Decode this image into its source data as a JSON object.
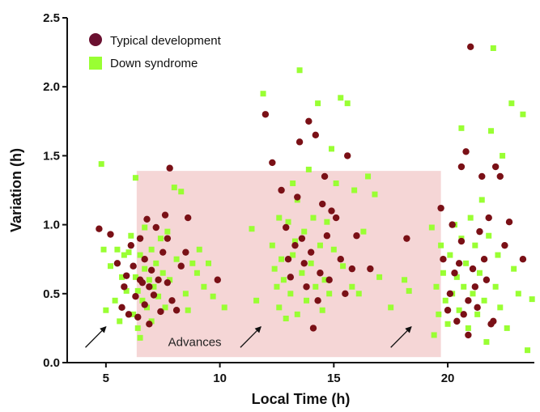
{
  "chart_data": {
    "type": "scatter",
    "title": "",
    "xlabel": "Local Time (h)",
    "ylabel": "Variation (h)",
    "xlim": [
      3.3,
      23.8
    ],
    "ylim": [
      0.0,
      2.5
    ],
    "xticks": [
      5,
      10,
      15,
      20
    ],
    "yticks": [
      0.0,
      0.5,
      1.0,
      1.5,
      2.0,
      2.5
    ],
    "ytick_labels": [
      "0.0",
      "0.5",
      "1.0",
      "1.5",
      "2.0",
      "2.5"
    ],
    "grid": false,
    "legend_position": "top-left",
    "shaded_region": {
      "x": [
        6.35,
        19.7
      ],
      "y": [
        0.04,
        1.39
      ],
      "color": "#f5d6d6"
    },
    "annotation": {
      "text": "Advances",
      "x": 8.9,
      "y": 0.12
    },
    "arrows": [
      {
        "from": [
          4.1,
          0.11
        ],
        "to": [
          5.0,
          0.26
        ]
      },
      {
        "from": [
          10.9,
          0.11
        ],
        "to": [
          11.8,
          0.26
        ]
      },
      {
        "from": [
          17.5,
          0.11
        ],
        "to": [
          18.4,
          0.26
        ]
      }
    ],
    "series": [
      {
        "name": "Typical development",
        "marker": "circle",
        "color": "#7a1016",
        "points": [
          [
            4.7,
            0.97
          ],
          [
            5.2,
            0.93
          ],
          [
            5.5,
            0.72
          ],
          [
            5.7,
            0.4
          ],
          [
            5.8,
            0.55
          ],
          [
            5.9,
            0.63
          ],
          [
            6.0,
            0.35
          ],
          [
            6.1,
            0.85
          ],
          [
            6.2,
            0.7
          ],
          [
            6.3,
            0.48
          ],
          [
            6.4,
            0.33
          ],
          [
            6.5,
            0.6
          ],
          [
            6.5,
            0.9
          ],
          [
            6.6,
            0.58
          ],
          [
            6.7,
            0.42
          ],
          [
            6.7,
            0.75
          ],
          [
            6.8,
            1.04
          ],
          [
            6.9,
            0.55
          ],
          [
            6.9,
            0.28
          ],
          [
            7.0,
            0.67
          ],
          [
            7.1,
            0.49
          ],
          [
            7.2,
            0.98
          ],
          [
            7.3,
            0.6
          ],
          [
            7.4,
            0.37
          ],
          [
            7.5,
            0.8
          ],
          [
            7.6,
            1.07
          ],
          [
            7.7,
            0.58
          ],
          [
            7.7,
            0.9
          ],
          [
            7.8,
            1.41
          ],
          [
            7.9,
            0.45
          ],
          [
            8.1,
            0.38
          ],
          [
            8.3,
            0.7
          ],
          [
            8.5,
            0.8
          ],
          [
            8.6,
            1.05
          ],
          [
            9.9,
            0.6
          ],
          [
            12.0,
            1.8
          ],
          [
            12.3,
            1.45
          ],
          [
            12.7,
            1.25
          ],
          [
            12.9,
            0.98
          ],
          [
            13.0,
            0.75
          ],
          [
            13.1,
            0.62
          ],
          [
            13.3,
            0.85
          ],
          [
            13.4,
            1.2
          ],
          [
            13.5,
            1.6
          ],
          [
            13.6,
            0.9
          ],
          [
            13.7,
            0.72
          ],
          [
            13.8,
            0.55
          ],
          [
            13.9,
            1.75
          ],
          [
            14.0,
            0.8
          ],
          [
            14.1,
            0.25
          ],
          [
            14.2,
            1.65
          ],
          [
            14.3,
            0.45
          ],
          [
            14.4,
            0.65
          ],
          [
            14.5,
            1.15
          ],
          [
            14.6,
            1.35
          ],
          [
            14.7,
            0.92
          ],
          [
            14.8,
            0.6
          ],
          [
            14.9,
            1.1
          ],
          [
            15.1,
            1.05
          ],
          [
            15.3,
            0.75
          ],
          [
            15.5,
            0.5
          ],
          [
            15.6,
            1.5
          ],
          [
            15.8,
            0.68
          ],
          [
            16.0,
            0.92
          ],
          [
            16.6,
            0.68
          ],
          [
            18.2,
            0.9
          ],
          [
            19.7,
            1.12
          ],
          [
            19.8,
            0.75
          ],
          [
            20.0,
            0.38
          ],
          [
            20.1,
            0.5
          ],
          [
            20.2,
            1.0
          ],
          [
            20.3,
            0.65
          ],
          [
            20.4,
            0.3
          ],
          [
            20.5,
            0.72
          ],
          [
            20.6,
            0.88
          ],
          [
            20.6,
            1.42
          ],
          [
            20.7,
            0.35
          ],
          [
            20.8,
            1.53
          ],
          [
            20.9,
            0.45
          ],
          [
            20.9,
            0.2
          ],
          [
            21.0,
            2.29
          ],
          [
            21.1,
            0.68
          ],
          [
            21.2,
            0.55
          ],
          [
            21.3,
            0.4
          ],
          [
            21.4,
            0.95
          ],
          [
            21.5,
            1.35
          ],
          [
            21.6,
            0.75
          ],
          [
            21.7,
            0.6
          ],
          [
            21.8,
            1.05
          ],
          [
            21.9,
            0.28
          ],
          [
            22.0,
            0.3
          ],
          [
            22.1,
            1.42
          ],
          [
            22.3,
            1.35
          ],
          [
            22.5,
            0.85
          ],
          [
            22.7,
            1.02
          ],
          [
            23.3,
            0.75
          ]
        ]
      },
      {
        "name": "Down syndrome",
        "marker": "square",
        "color": "#99ff33",
        "points": [
          [
            4.8,
            1.44
          ],
          [
            4.9,
            0.82
          ],
          [
            5.0,
            0.38
          ],
          [
            5.2,
            0.7
          ],
          [
            5.4,
            0.45
          ],
          [
            5.5,
            0.82
          ],
          [
            5.6,
            0.3
          ],
          [
            5.7,
            0.62
          ],
          [
            5.8,
            0.78
          ],
          [
            5.9,
            0.52
          ],
          [
            6.0,
            0.8
          ],
          [
            6.1,
            0.92
          ],
          [
            6.2,
            0.35
          ],
          [
            6.3,
            1.34
          ],
          [
            6.3,
            0.62
          ],
          [
            6.4,
            0.25
          ],
          [
            6.4,
            0.52
          ],
          [
            6.5,
            0.78
          ],
          [
            6.5,
            0.18
          ],
          [
            6.6,
            0.45
          ],
          [
            6.7,
            0.68
          ],
          [
            6.7,
            0.98
          ],
          [
            6.8,
            0.4
          ],
          [
            6.9,
            0.6
          ],
          [
            7.0,
            0.82
          ],
          [
            7.0,
            0.3
          ],
          [
            7.1,
            0.55
          ],
          [
            7.2,
            0.72
          ],
          [
            7.3,
            0.48
          ],
          [
            7.4,
            0.9
          ],
          [
            7.5,
            0.65
          ],
          [
            7.6,
            0.4
          ],
          [
            7.7,
            0.95
          ],
          [
            7.8,
            0.6
          ],
          [
            8.0,
            1.27
          ],
          [
            8.1,
            0.75
          ],
          [
            8.3,
            1.24
          ],
          [
            8.5,
            0.5
          ],
          [
            8.6,
            0.38
          ],
          [
            8.8,
            0.72
          ],
          [
            9.0,
            0.65
          ],
          [
            9.1,
            0.82
          ],
          [
            9.3,
            0.55
          ],
          [
            9.5,
            0.72
          ],
          [
            9.7,
            0.48
          ],
          [
            10.2,
            0.4
          ],
          [
            11.4,
            0.97
          ],
          [
            11.6,
            0.45
          ],
          [
            11.9,
            1.95
          ],
          [
            12.3,
            0.85
          ],
          [
            12.4,
            0.68
          ],
          [
            12.5,
            0.55
          ],
          [
            12.6,
            0.4
          ],
          [
            12.6,
            1.05
          ],
          [
            12.7,
            0.75
          ],
          [
            12.8,
            0.6
          ],
          [
            12.9,
            0.32
          ],
          [
            13.0,
            1.02
          ],
          [
            13.1,
            0.5
          ],
          [
            13.2,
            0.78
          ],
          [
            13.2,
            1.3
          ],
          [
            13.3,
            0.88
          ],
          [
            13.4,
            0.35
          ],
          [
            13.4,
            1.18
          ],
          [
            13.5,
            2.12
          ],
          [
            13.6,
            0.65
          ],
          [
            13.7,
            0.95
          ],
          [
            13.8,
            0.45
          ],
          [
            13.9,
            1.4
          ],
          [
            14.0,
            0.72
          ],
          [
            14.1,
            1.05
          ],
          [
            14.2,
            0.55
          ],
          [
            14.3,
            1.88
          ],
          [
            14.4,
            0.85
          ],
          [
            14.5,
            0.38
          ],
          [
            14.6,
            0.6
          ],
          [
            14.7,
            1.02
          ],
          [
            14.8,
            0.5
          ],
          [
            14.9,
            1.55
          ],
          [
            15.0,
            0.82
          ],
          [
            15.1,
            1.3
          ],
          [
            15.3,
            1.92
          ],
          [
            15.4,
            0.7
          ],
          [
            15.6,
            1.88
          ],
          [
            15.8,
            0.55
          ],
          [
            15.9,
            1.25
          ],
          [
            16.1,
            0.5
          ],
          [
            16.3,
            0.95
          ],
          [
            16.5,
            1.35
          ],
          [
            16.8,
            1.22
          ],
          [
            17.0,
            0.62
          ],
          [
            17.5,
            0.4
          ],
          [
            18.1,
            0.6
          ],
          [
            18.3,
            0.52
          ],
          [
            19.3,
            0.98
          ],
          [
            19.4,
            0.2
          ],
          [
            19.5,
            0.55
          ],
          [
            19.6,
            0.35
          ],
          [
            19.7,
            0.85
          ],
          [
            19.8,
            0.65
          ],
          [
            19.9,
            0.45
          ],
          [
            20.0,
            0.28
          ],
          [
            20.1,
            0.78
          ],
          [
            20.2,
            0.5
          ],
          [
            20.3,
            1.0
          ],
          [
            20.4,
            0.62
          ],
          [
            20.5,
            0.38
          ],
          [
            20.6,
            0.9
          ],
          [
            20.6,
            1.7
          ],
          [
            20.7,
            0.55
          ],
          [
            20.8,
            0.72
          ],
          [
            20.9,
            0.25
          ],
          [
            21.0,
            1.05
          ],
          [
            21.1,
            0.5
          ],
          [
            21.2,
            0.85
          ],
          [
            21.3,
            0.35
          ],
          [
            21.4,
            0.65
          ],
          [
            21.5,
            1.18
          ],
          [
            21.6,
            0.45
          ],
          [
            21.7,
            0.15
          ],
          [
            21.8,
            0.92
          ],
          [
            21.9,
            1.68
          ],
          [
            22.0,
            2.28
          ],
          [
            22.1,
            0.55
          ],
          [
            22.2,
            0.78
          ],
          [
            22.3,
            0.4
          ],
          [
            22.4,
            1.5
          ],
          [
            22.6,
            0.25
          ],
          [
            22.8,
            1.88
          ],
          [
            22.9,
            0.68
          ],
          [
            23.1,
            0.5
          ],
          [
            23.3,
            1.8
          ],
          [
            23.5,
            0.09
          ],
          [
            23.7,
            0.46
          ]
        ]
      }
    ]
  }
}
